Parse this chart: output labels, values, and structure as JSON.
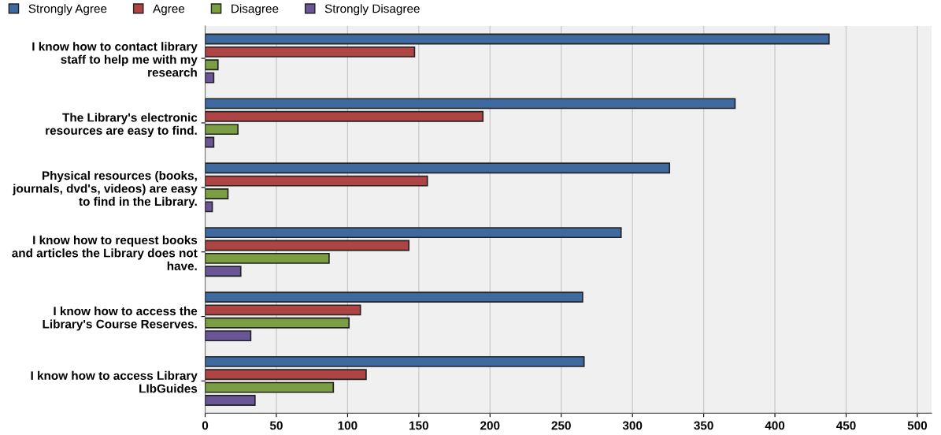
{
  "chart_data": {
    "type": "bar",
    "orientation": "horizontal",
    "categories": [
      "I know how to contact library staff to help me with my research",
      "The Library's electronic resources are easy to find.",
      "Physical resources (books, journals, dvd's, videos) are easy to find in the Library.",
      "I know how to request books and articles the Library does not have.",
      "I know how to access the Library's Course Reserves.",
      "I know how to access Library LIbGuides"
    ],
    "series": [
      {
        "name": "Strongly Agree",
        "color": "#3e6a9f",
        "values": [
          438,
          372,
          326,
          292,
          265,
          266
        ]
      },
      {
        "name": "Agree",
        "color": "#b04444",
        "values": [
          147,
          195,
          156,
          143,
          109,
          113
        ]
      },
      {
        "name": "Disagree",
        "color": "#7b9e42",
        "values": [
          9,
          23,
          16,
          87,
          101,
          90
        ]
      },
      {
        "name": "Strongly Disagree",
        "color": "#6a5696",
        "values": [
          6,
          6,
          5,
          25,
          32,
          35
        ]
      }
    ],
    "xlim": [
      0,
      510
    ],
    "xticks": [
      0,
      50,
      100,
      150,
      200,
      250,
      300,
      350,
      400,
      450,
      500
    ],
    "grid": "x",
    "legend": "top left"
  }
}
